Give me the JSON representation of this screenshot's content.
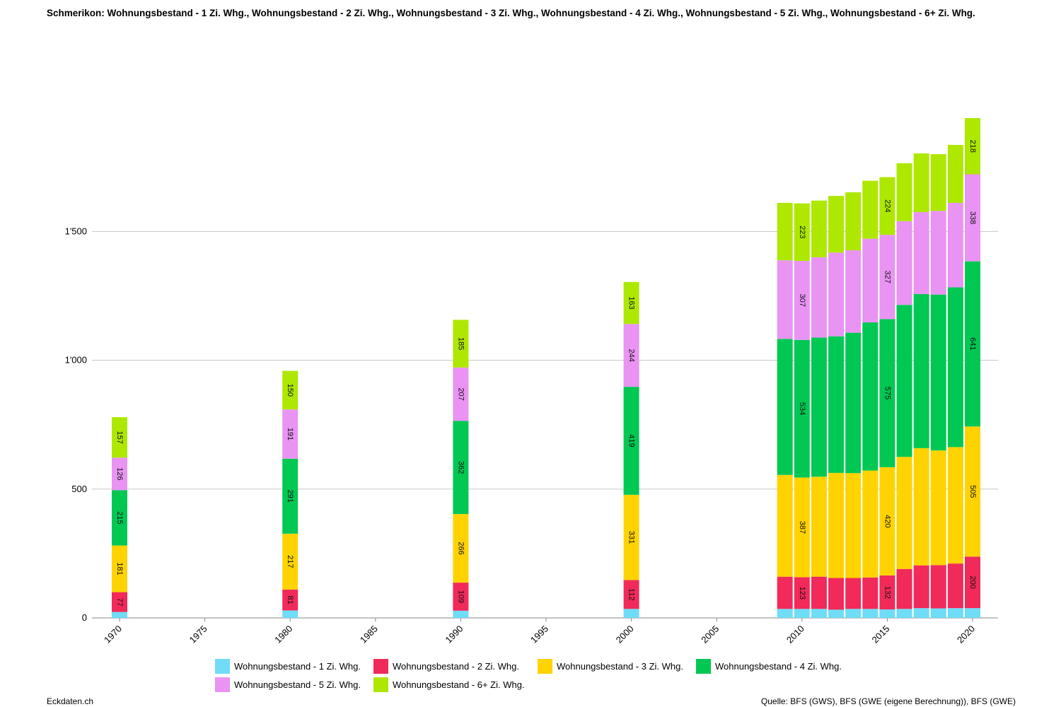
{
  "title": "Schmerikon: Wohnungsbestand - 1 Zi. Whg., Wohnungsbestand - 2 Zi. Whg., Wohnungsbestand - 3 Zi. Whg., Wohnungsbestand - 4 Zi. Whg., Wohnungsbestand - 5 Zi. Whg., Wohnungsbestand - 6+ Zi. Whg.",
  "footer": {
    "left": "Eckdaten.ch",
    "right": "Quelle: BFS (GWS), BFS (GWE (eigene Berechnung)), BFS (GWE)"
  },
  "chart_data": {
    "type": "bar",
    "stacked": true,
    "x": [
      1970,
      1980,
      1990,
      2000,
      2009,
      2010,
      2011,
      2012,
      2013,
      2014,
      2015,
      2016,
      2017,
      2018,
      2019,
      2020
    ],
    "x_ticks": [
      "1970",
      "1975",
      "1980",
      "1985",
      "1990",
      "1995",
      "2000",
      "2005",
      "2010",
      "2015",
      "2020"
    ],
    "y_ticks": [
      "0",
      "500",
      "1'000",
      "1'500"
    ],
    "ylim": [
      0,
      2000
    ],
    "grid": true,
    "legend_position": "bottom",
    "series": [
      {
        "name": "Wohnungsbestand - 1 Zi. Whg.",
        "color": "#6fdcf8",
        "values": [
          23,
          29,
          28,
          35,
          35,
          35,
          35,
          32,
          35,
          35,
          33,
          35,
          38,
          37,
          38,
          38
        ]
      },
      {
        "name": "Wohnungsbestand - 2 Zi. Whg.",
        "color": "#f12a5a",
        "values": [
          77,
          81,
          109,
          112,
          125,
          123,
          125,
          123,
          120,
          122,
          132,
          155,
          166,
          168,
          173,
          200
        ]
      },
      {
        "name": "Wohnungsbestand - 3 Zi. Whg.",
        "color": "#ffd300",
        "values": [
          181,
          217,
          266,
          331,
          395,
          387,
          388,
          408,
          407,
          415,
          420,
          435,
          455,
          445,
          452,
          505
        ]
      },
      {
        "name": "Wohnungsbestand - 4 Zi. Whg.",
        "color": "#00c853",
        "values": [
          215,
          291,
          362,
          419,
          528,
          534,
          540,
          530,
          545,
          575,
          575,
          590,
          598,
          605,
          620,
          641
        ]
      },
      {
        "name": "Wohnungsbestand - 5 Zi. Whg.",
        "color": "#e993f3",
        "values": [
          126,
          191,
          207,
          244,
          305,
          307,
          312,
          325,
          320,
          325,
          327,
          325,
          318,
          325,
          328,
          338
        ]
      },
      {
        "name": "Wohnungsbestand - 6+ Zi. Whg.",
        "color": "#aee800",
        "values": [
          157,
          150,
          185,
          163,
          223,
          223,
          220,
          220,
          225,
          225,
          224,
          225,
          228,
          220,
          225,
          218
        ]
      }
    ],
    "labeled_x": [
      1970,
      1980,
      1990,
      2000,
      2010,
      2015,
      2020
    ]
  }
}
